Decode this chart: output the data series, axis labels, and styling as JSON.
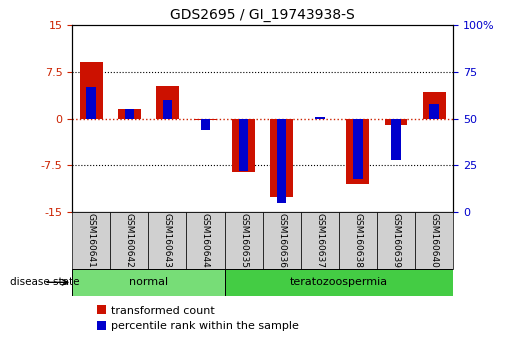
{
  "title": "GDS2695 / GI_19743938-S",
  "samples": [
    "GSM160641",
    "GSM160642",
    "GSM160643",
    "GSM160644",
    "GSM160635",
    "GSM160636",
    "GSM160637",
    "GSM160638",
    "GSM160639",
    "GSM160640"
  ],
  "red_values": [
    9.0,
    1.5,
    5.2,
    -0.3,
    -8.5,
    -12.5,
    0.0,
    -10.5,
    -1.0,
    4.2
  ],
  "blue_values_pct": [
    67,
    55,
    60,
    44,
    22,
    5,
    51,
    18,
    28,
    58
  ],
  "ylim_left": [
    -15,
    15
  ],
  "ylim_right": [
    0,
    100
  ],
  "yticks_left": [
    -15,
    -7.5,
    0,
    7.5,
    15
  ],
  "ytick_labels_left": [
    "-15",
    "-7.5",
    "0",
    "7.5",
    "15"
  ],
  "yticks_right": [
    0,
    25,
    50,
    75,
    100
  ],
  "ytick_labels_right": [
    "0",
    "25",
    "50",
    "75",
    "100%"
  ],
  "left_tick_color": "#cc2200",
  "right_tick_color": "#0000cc",
  "bar_color_red": "#cc1100",
  "bar_color_blue": "#0000cc",
  "normal_label": "normal",
  "tera_label": "teratozoospermia",
  "group_color_normal": "#77dd77",
  "group_color_tera": "#44cc44",
  "disease_state_label": "disease state",
  "legend_red_label": "transformed count",
  "legend_blue_label": "percentile rank within the sample",
  "red_bar_width": 0.6,
  "blue_bar_width": 0.25,
  "background_color": "#ffffff",
  "hline_color_dotted": "#000000",
  "hline_color_zero_red": "#cc2200"
}
